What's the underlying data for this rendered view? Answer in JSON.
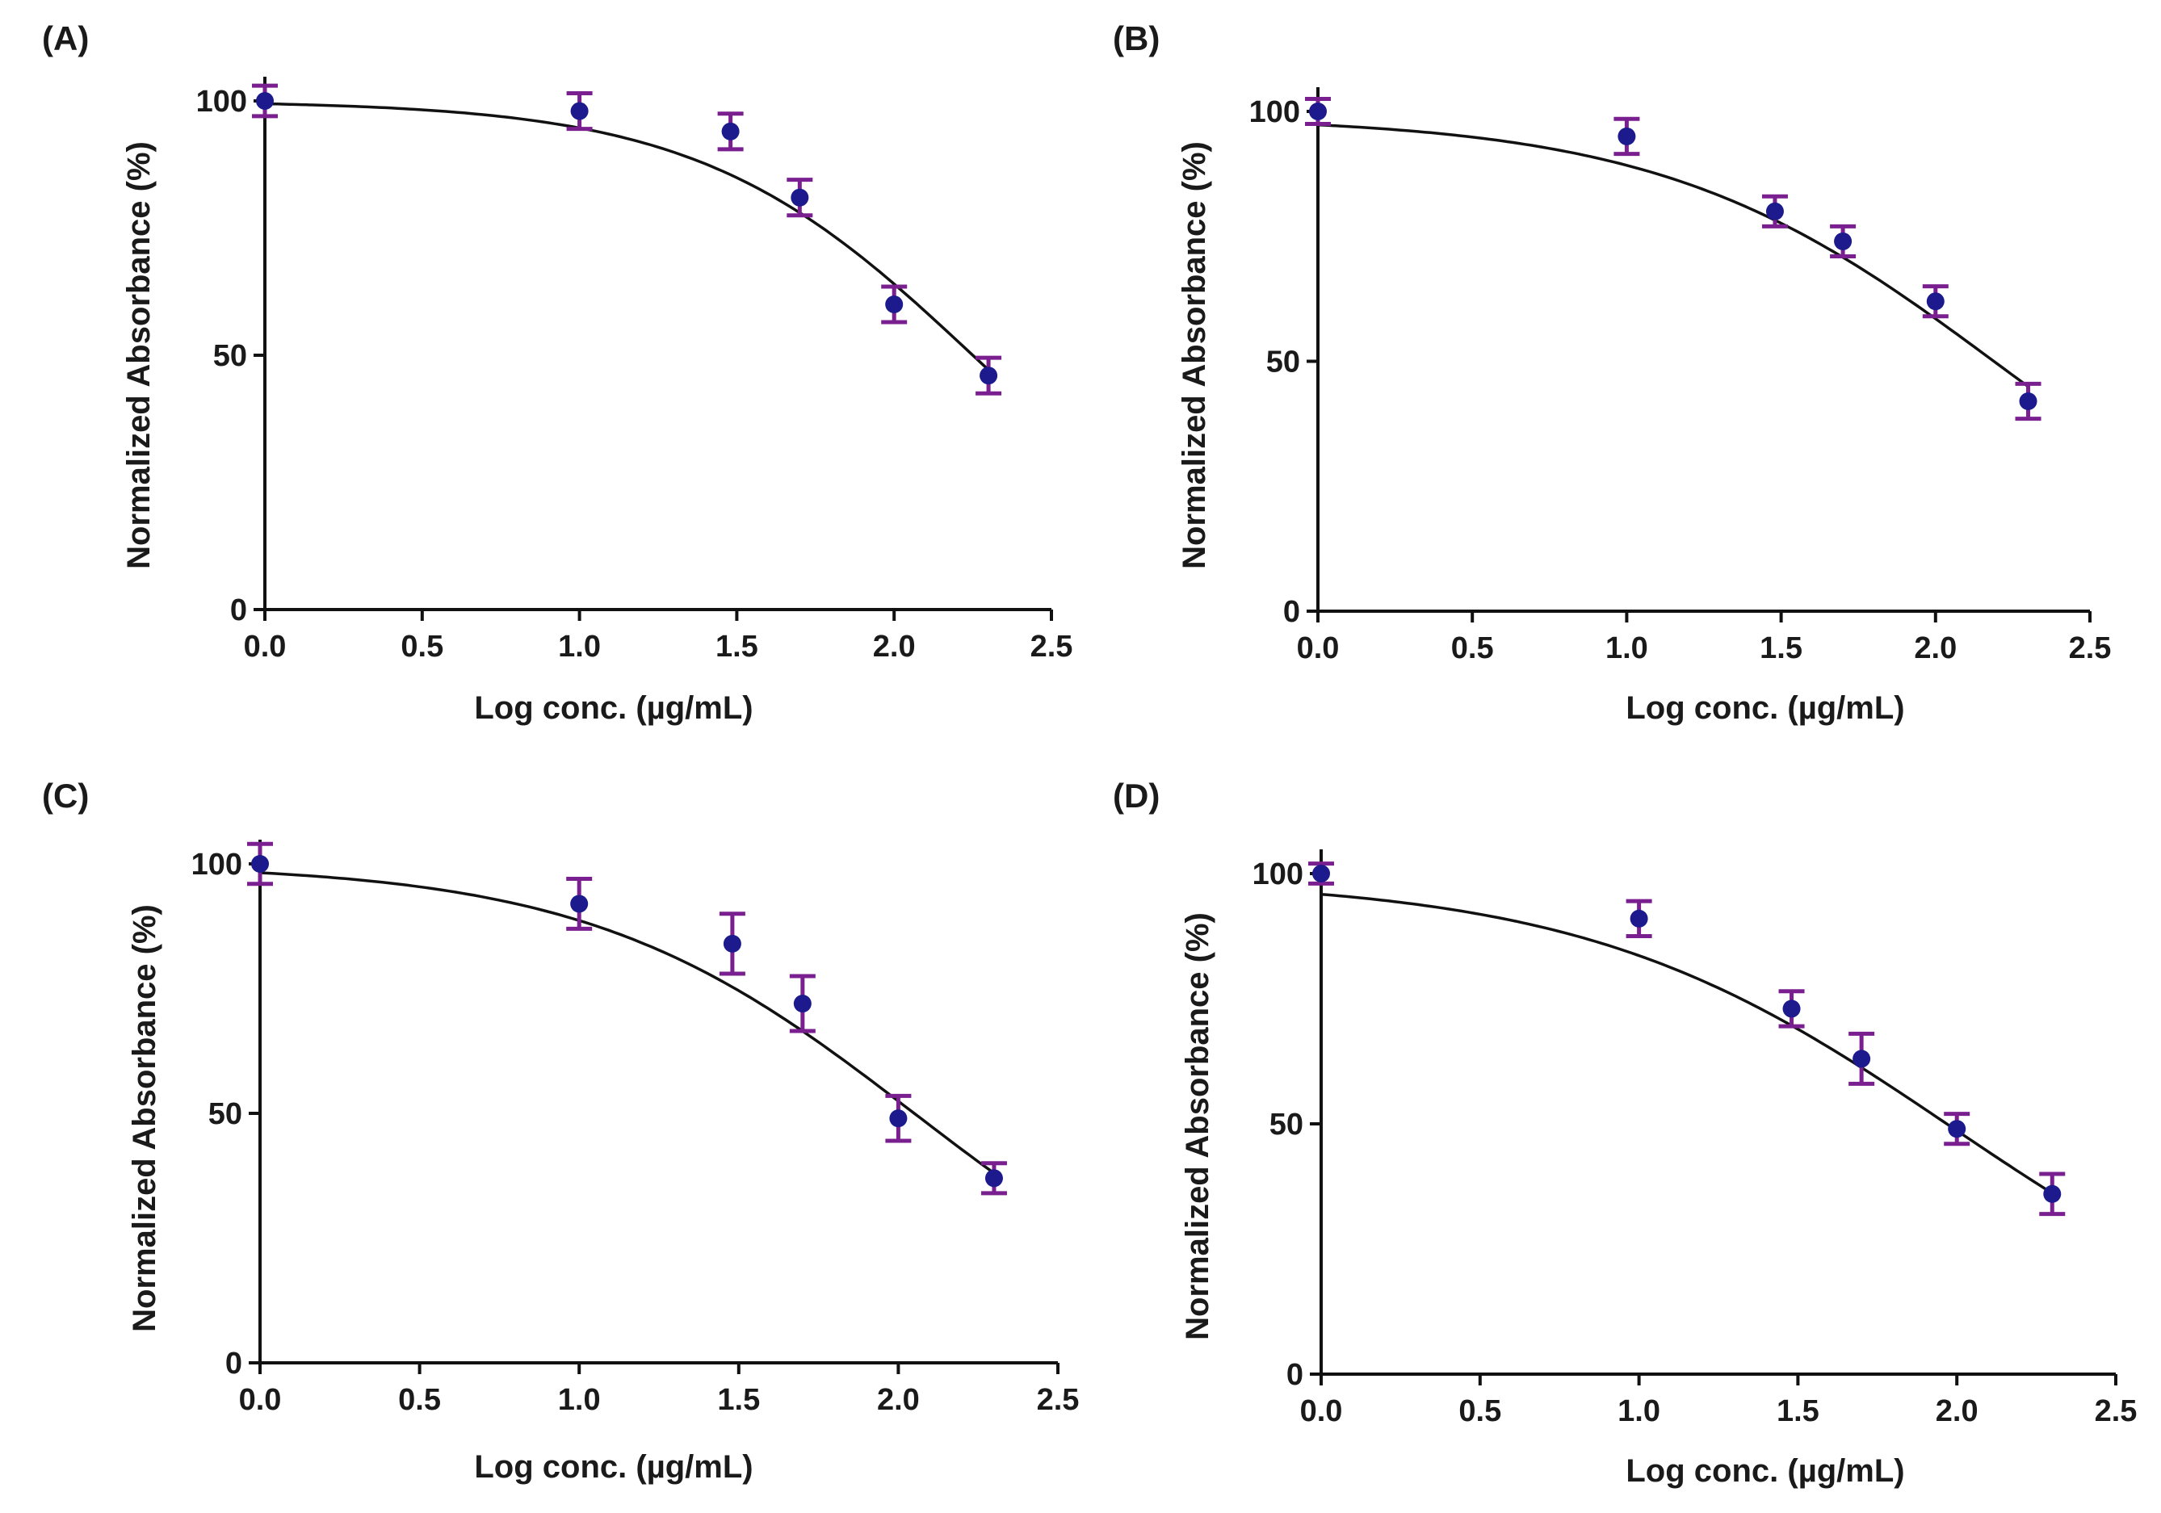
{
  "colors": {
    "marker": "#1c1a8c",
    "error_bar": "#7a1f8f",
    "curve": "#111111",
    "axis": "#111111"
  },
  "chart_data": [
    {
      "panel": "(A)",
      "type": "scatter",
      "xlabel": "Log conc. (µg/mL)",
      "ylabel": "Normalized Absorbance (%)",
      "xlim": [
        0,
        2.5
      ],
      "ylim": [
        0,
        100
      ],
      "xticks": [
        "0.0",
        "0.5",
        "1.0",
        "1.5",
        "2.0",
        "2.5"
      ],
      "yticks": [
        "0",
        "50",
        "100"
      ],
      "x": [
        0.0,
        1.0,
        1.48,
        1.7,
        2.0,
        2.3
      ],
      "y": [
        100,
        98,
        94,
        81,
        60,
        46
      ],
      "error": [
        3,
        3.5,
        3.5,
        3.5,
        3.5,
        3.5
      ],
      "fit": {
        "model": "sigmoidal dose-response",
        "top": 100,
        "bottom": 0,
        "log_ic50": 2.25,
        "hill_slope": -1.0
      }
    },
    {
      "panel": "(B)",
      "type": "scatter",
      "xlabel": "Log conc. (µg/mL)",
      "ylabel": "Normalized Absorbance (%)",
      "xlim": [
        0,
        2.5
      ],
      "ylim": [
        0,
        100
      ],
      "xticks": [
        "0.0",
        "0.5",
        "1.0",
        "1.5",
        "2.0",
        "2.5"
      ],
      "yticks": [
        "0",
        "50",
        "100"
      ],
      "x": [
        0.0,
        1.0,
        1.48,
        1.7,
        2.0,
        2.3
      ],
      "y": [
        100,
        95,
        80,
        74,
        62,
        42
      ],
      "error": [
        2.5,
        3.5,
        3,
        3,
        3,
        3.5
      ],
      "fit": {
        "model": "sigmoidal dose-response",
        "top": 99,
        "bottom": 0,
        "log_ic50": 2.2,
        "hill_slope": -0.8
      }
    },
    {
      "panel": "(C)",
      "type": "scatter",
      "xlabel": "Log conc. (µg/mL)",
      "ylabel": "Normalized Absorbance (%)",
      "xlim": [
        0,
        2.5
      ],
      "ylim": [
        0,
        100
      ],
      "xticks": [
        "0.0",
        "0.5",
        "1.0",
        "1.5",
        "2.0",
        "2.5"
      ],
      "yticks": [
        "0",
        "50",
        "100"
      ],
      "x": [
        0.0,
        1.0,
        1.48,
        1.7,
        2.0,
        2.3
      ],
      "y": [
        100,
        92,
        84,
        72,
        49,
        37
      ],
      "error": [
        4,
        5,
        6,
        5.5,
        4.5,
        3
      ],
      "fit": {
        "model": "sigmoidal dose-response",
        "top": 100,
        "bottom": 0,
        "log_ic50": 2.05,
        "hill_slope": -0.85
      }
    },
    {
      "panel": "(D)",
      "type": "scatter",
      "xlabel": "Log conc. (µg/mL)",
      "ylabel": "Normalized Absorbance (%)",
      "xlim": [
        0,
        2.5
      ],
      "ylim": [
        0,
        100
      ],
      "xticks": [
        "0.0",
        "0.5",
        "1.0",
        "1.5",
        "2.0",
        "2.5"
      ],
      "yticks": [
        "0",
        "50",
        "100"
      ],
      "x": [
        0.0,
        1.0,
        1.48,
        1.7,
        2.0,
        2.3
      ],
      "y": [
        100,
        91,
        73,
        63,
        49,
        36
      ],
      "error": [
        2,
        3.5,
        3.5,
        5,
        3,
        4
      ],
      "fit": {
        "model": "sigmoidal dose-response",
        "top": 99,
        "bottom": 0,
        "log_ic50": 1.98,
        "hill_slope": -0.75
      }
    }
  ]
}
